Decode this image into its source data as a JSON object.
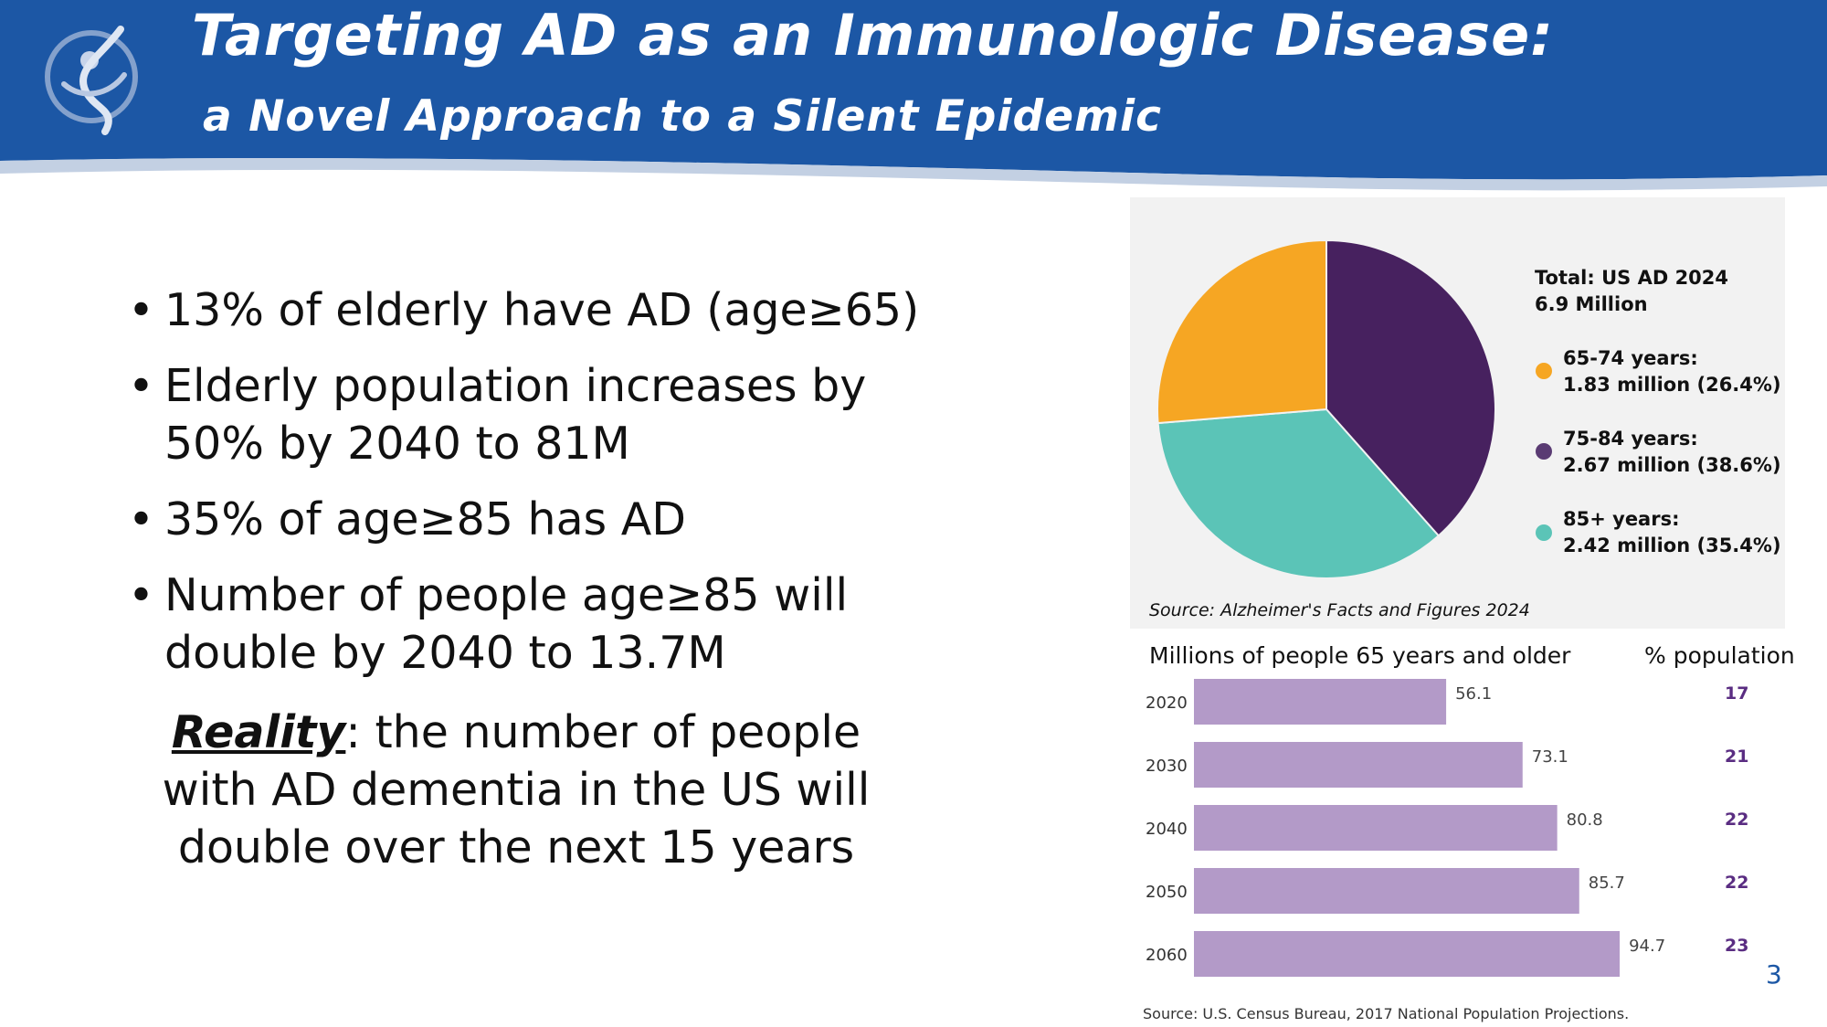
{
  "header": {
    "title": "Targeting AD as an Immunologic Disease:",
    "subtitle": "a Novel Approach to a Silent Epidemic",
    "logo_icon": "figure-logo-icon",
    "background_color": "#1c57a5"
  },
  "bullets": [
    "13% of elderly have AD (age≥65)",
    "Elderly population increases by 50% by 2040 to 81M",
    "35% of age≥85 has AD",
    "Number of people age≥85 will double by 2040 to 13.7M"
  ],
  "reality": {
    "label": "Reality",
    "text": ": the number of people with AD dementia in the US will double over the next 15  years"
  },
  "pie_legend": {
    "total_line1": "Total:  US AD 2024",
    "total_line2": "6.9 Million",
    "source": "Source: Alzheimer's Facts and Figures 2024"
  },
  "bar_panel": {
    "left_header": "Millions of people 65 years and older",
    "right_header": "% population",
    "source": "Source: U.S. Census Bureau, 2017 National Population Projections."
  },
  "slide_number": "3",
  "chart_data": [
    {
      "type": "pie",
      "title": "Total:  US AD 2024 6.9 Million",
      "slices": [
        {
          "label": "65-74 years:",
          "detail": "1.83 million (26.4%)",
          "value": 26.4,
          "color": "#f6a623"
        },
        {
          "label": "75-84 years:",
          "detail": "2.67 million (38.6%)",
          "value": 38.6,
          "color": "#47215f"
        },
        {
          "label": "85+ years:",
          "detail": "2.42 million (35.4%)",
          "value": 35.4,
          "color": "#5bc4b7"
        }
      ]
    },
    {
      "type": "bar",
      "orientation": "horizontal",
      "title": "Millions of people 65 years and older",
      "categories": [
        "2020",
        "2030",
        "2040",
        "2050",
        "2060"
      ],
      "values": [
        56.1,
        73.1,
        80.8,
        85.7,
        94.7
      ],
      "value_labels": [
        "56.1",
        "73.1",
        "80.8",
        "85.7",
        "94.7"
      ],
      "percent_population": [
        "17",
        "21",
        "22",
        "22",
        "23"
      ],
      "bar_color": "#b39ac8",
      "percent_color": "#5a2d82",
      "xlim": [
        0,
        100
      ]
    }
  ]
}
